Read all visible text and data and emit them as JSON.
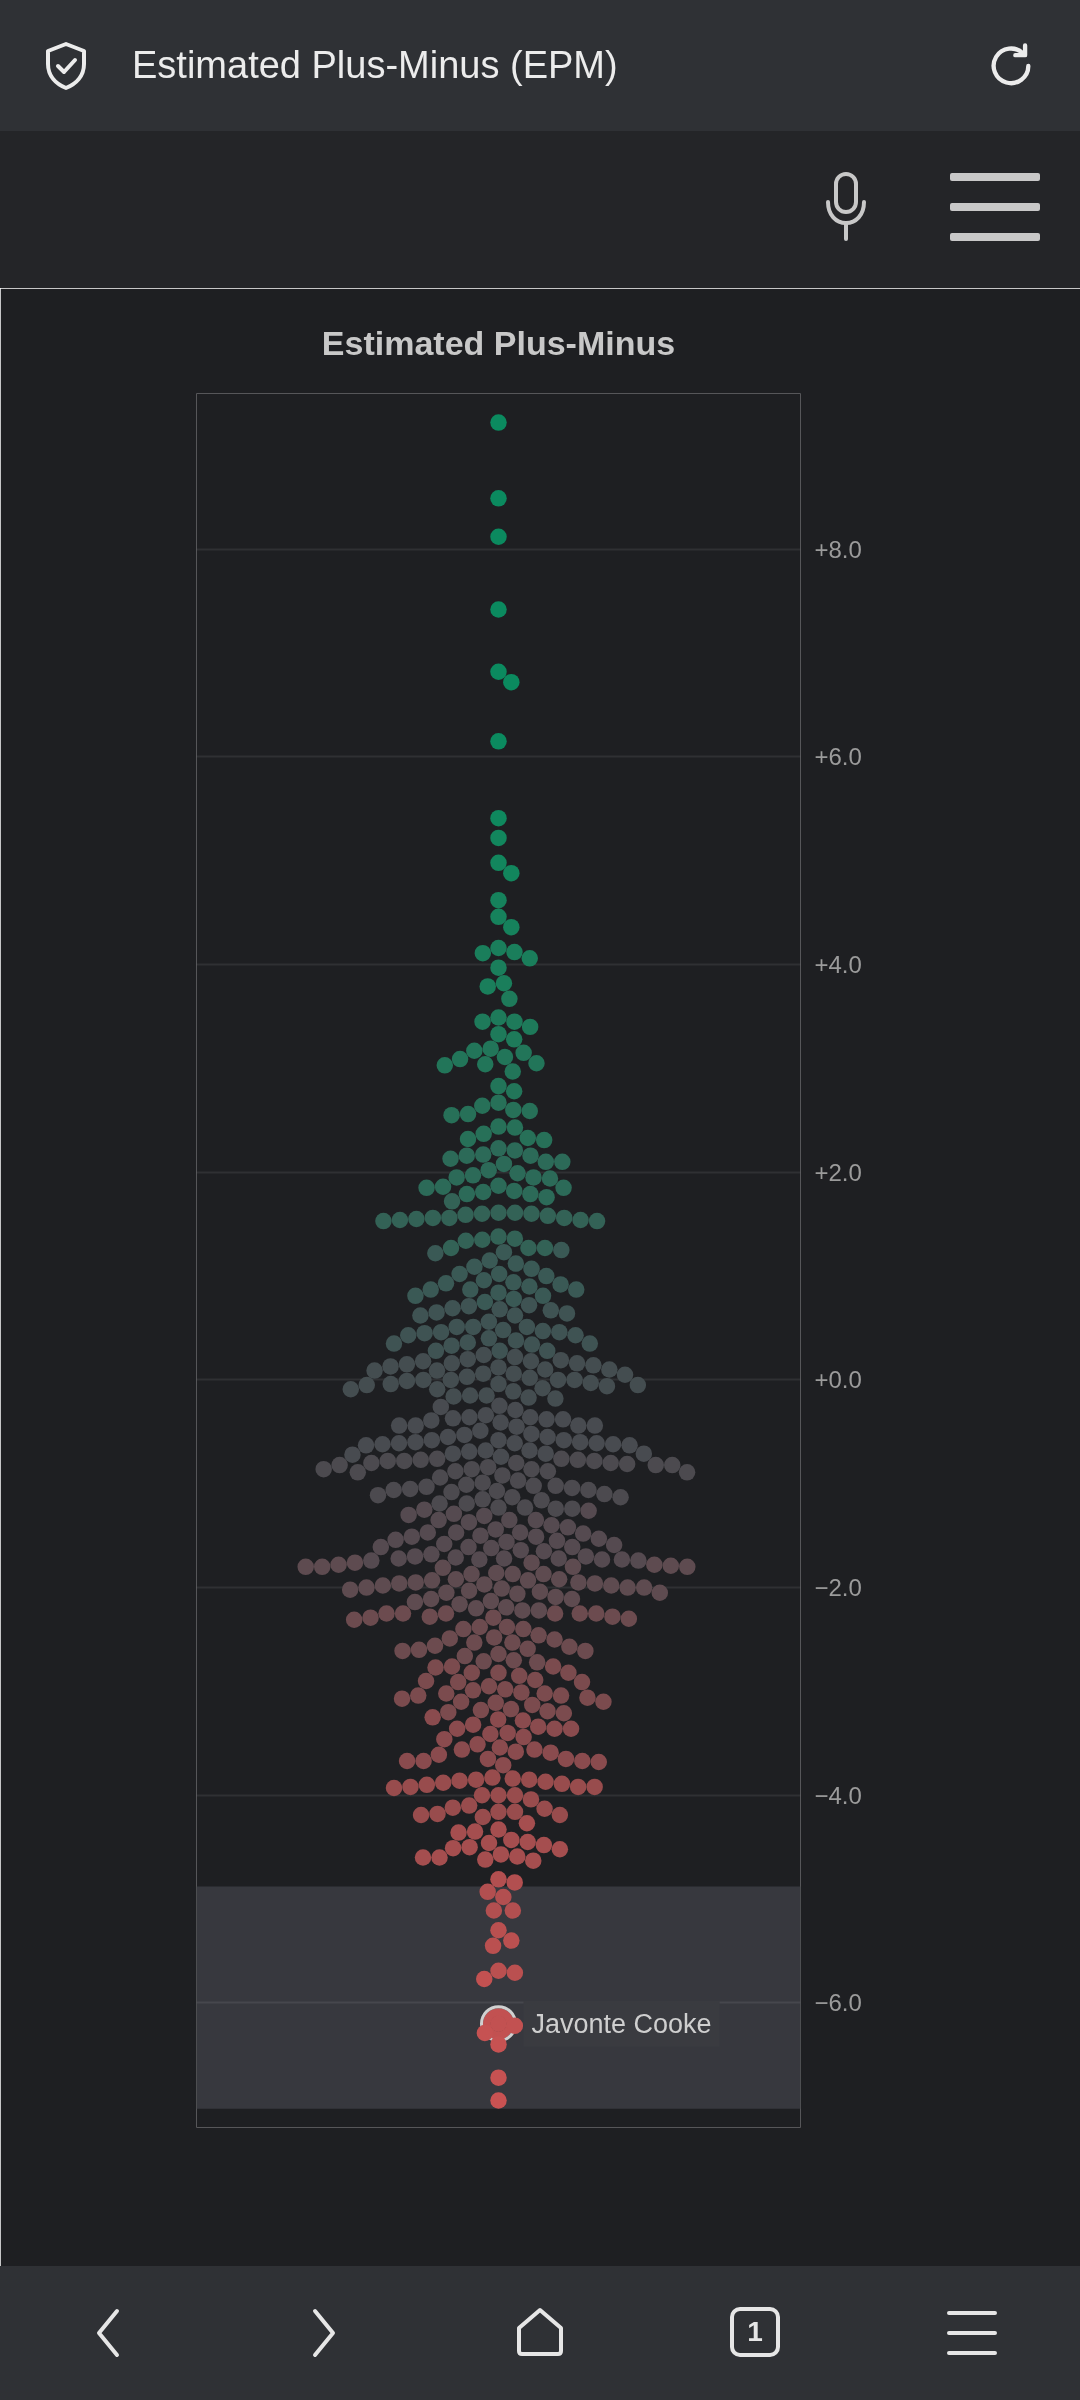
{
  "chart_data": {
    "type": "scatter",
    "title": "Estimated Plus-Minus",
    "marker": "circle",
    "grid": "y",
    "tick_labels": "y",
    "categories": [
      null
    ],
    "ylim": [
      -7.2,
      9.5
    ],
    "yticks": [
      {
        "value": 8,
        "label": "+8.0"
      },
      {
        "value": 6,
        "label": "+6.0"
      },
      {
        "value": 4,
        "label": "+4.0"
      },
      {
        "value": 2,
        "label": "+2.0"
      },
      {
        "value": 0,
        "label": "+0.0"
      },
      {
        "value": -2,
        "label": "−2.0"
      },
      {
        "value": -4,
        "label": "−4.0"
      },
      {
        "value": -6,
        "label": "−6.0"
      }
    ],
    "bands": [
      {
        "axis": "y",
        "from": -4.88,
        "to": -7.02,
        "color": "#37383e"
      }
    ],
    "annotations": [
      "Estimated Plus-Minus (EPM)",
      "1"
    ],
    "series": [
      {
        "color": "#0b8a5f",
        "x": [
          null,
          null,
          null,
          null,
          null,
          null,
          null
        ],
        "values": [
          9.22,
          8.49,
          8.12,
          7.42,
          6.82,
          6.72,
          6.15
        ]
      },
      {
        "color": "#0f885e",
        "x": [
          null
        ],
        "values": [
          5.41
        ]
      },
      {
        "color": "#12865d",
        "x": [
          null,
          null,
          null
        ],
        "values": [
          5.22,
          4.98,
          4.88
        ]
      },
      {
        "color": "#16825c",
        "x": [
          null,
          null,
          null
        ],
        "values": [
          4.62,
          4.46,
          4.36
        ]
      },
      {
        "color": "#1a7e5b",
        "x": [
          null,
          null,
          null,
          null,
          null,
          null,
          null
        ],
        "values": [
          4.16,
          4.12,
          4.11,
          4.06,
          3.97,
          3.82,
          3.79
        ]
      },
      {
        "color": "#1e7a5a",
        "x": [
          null,
          null,
          null,
          null,
          null,
          null,
          null
        ],
        "values": [
          3.67,
          3.49,
          3.45,
          3.45,
          3.4,
          3.33,
          3.28
        ]
      },
      {
        "color": "#227559",
        "x": [
          null,
          null,
          null,
          null,
          null,
          null,
          null,
          null,
          null,
          null,
          null
        ],
        "values": [
          3.19,
          3.17,
          3.15,
          3.11,
          3.09,
          3.05,
          3.04,
          3.03,
          2.97,
          2.83,
          2.78
        ]
      },
      {
        "color": "#277058",
        "x": [
          null,
          null,
          null,
          null,
          null,
          null,
          null,
          null,
          null,
          null,
          null,
          null
        ],
        "values": [
          2.67,
          2.64,
          2.6,
          2.59,
          2.56,
          2.55,
          2.44,
          2.43,
          2.37,
          2.33,
          2.32,
          2.31
        ]
      },
      {
        "color": "#2c6a58",
        "x": [
          null,
          null,
          null,
          null,
          null,
          null,
          null,
          null,
          null,
          null,
          null,
          null,
          null,
          null,
          null,
          null,
          null,
          null,
          null,
          null,
          null,
          null,
          null,
          null
        ],
        "values": [
          2.23,
          2.21,
          2.17,
          2.16,
          2.16,
          2.13,
          2.1,
          2.1,
          2.08,
          2.02,
          1.99,
          1.97,
          1.95,
          1.95,
          1.94,
          1.87,
          1.86,
          1.85,
          1.85,
          1.82,
          1.81,
          1.79,
          1.79,
          1.76
        ]
      },
      {
        "color": "#336256",
        "x": [
          null,
          null,
          null,
          null,
          null,
          null,
          null,
          null,
          null,
          null,
          null,
          null,
          null,
          null,
          null,
          null,
          null,
          null,
          null,
          null,
          null,
          null
        ],
        "values": [
          1.72,
          1.61,
          1.61,
          1.6,
          1.6,
          1.59,
          1.58,
          1.56,
          1.56,
          1.56,
          1.55,
          1.54,
          1.54,
          1.53,
          1.53,
          1.38,
          1.36,
          1.35,
          1.34,
          1.27,
          1.27,
          1.27
        ]
      },
      {
        "color": "#3a5955",
        "x": [
          null,
          null,
          null,
          null,
          null,
          null,
          null,
          null,
          null,
          null,
          null,
          null,
          null,
          null,
          null,
          null,
          null,
          null,
          null,
          null,
          null,
          null,
          null
        ],
        "values": [
          1.25,
          1.23,
          1.22,
          1.15,
          1.12,
          1.09,
          1.07,
          1.02,
          1.02,
          1.0,
          0.96,
          0.94,
          0.93,
          0.92,
          0.9,
          0.87,
          0.87,
          0.87,
          0.84,
          0.81,
          0.81,
          0.78,
          0.75
        ]
      },
      {
        "color": "#3f5353",
        "x": [
          null,
          null,
          null,
          null,
          null,
          null,
          null,
          null,
          null,
          null,
          null,
          null,
          null,
          null,
          null,
          null,
          null,
          null,
          null,
          null,
          null,
          null,
          null,
          null,
          null,
          null,
          null,
          null,
          null,
          null
        ],
        "values": [
          0.72,
          0.71,
          0.69,
          0.68,
          0.67,
          0.65,
          0.64,
          0.62,
          0.62,
          0.56,
          0.51,
          0.51,
          0.51,
          0.48,
          0.47,
          0.46,
          0.46,
          0.45,
          0.43,
          0.43,
          0.4,
          0.38,
          0.36,
          0.35,
          0.35,
          0.34,
          0.33,
          0.28,
          0.28,
          0.28
        ]
      },
      {
        "color": "#444d50",
        "x": [
          null,
          null,
          null,
          null,
          null,
          null,
          null,
          null,
          null,
          null,
          null,
          null,
          null,
          null,
          null,
          null,
          null,
          null,
          null,
          null,
          null,
          null,
          null,
          null,
          null,
          null,
          null,
          null,
          null,
          null,
          null,
          null,
          null,
          null,
          null,
          null,
          null,
          null,
          null,
          null,
          null
        ],
        "values": [
          0.24,
          0.22,
          0.2,
          0.19,
          0.18,
          0.18,
          0.16,
          0.16,
          0.15,
          0.14,
          0.13,
          0.12,
          0.1,
          0.1,
          0.09,
          0.09,
          0.06,
          0.06,
          0.05,
          0.03,
          0.02,
          0.0,
          0.0,
          0.0,
          0.0,
          -0.01,
          -0.03,
          -0.04,
          -0.04,
          -0.05,
          -0.05,
          -0.06,
          -0.08,
          -0.09,
          -0.09,
          -0.11,
          -0.15,
          -0.15,
          -0.16,
          -0.17,
          -0.18
        ]
      },
      {
        "color": "#484b50",
        "x": [
          null,
          null,
          null,
          null,
          null,
          null,
          null,
          null,
          null,
          null,
          null,
          null,
          null,
          null,
          null,
          null,
          null,
          null,
          null,
          null,
          null,
          null,
          null,
          null,
          null,
          null,
          null,
          null,
          null,
          null,
          null,
          null,
          null,
          null,
          null,
          null,
          null,
          null,
          null,
          null,
          null
        ],
        "values": [
          -0.25,
          -0.26,
          -0.29,
          -0.34,
          -0.36,
          -0.36,
          -0.37,
          -0.38,
          -0.38,
          -0.39,
          -0.41,
          -0.44,
          -0.44,
          -0.44,
          -0.44,
          -0.45,
          -0.49,
          -0.52,
          -0.53,
          -0.55,
          -0.55,
          -0.58,
          -0.58,
          -0.58,
          -0.6,
          -0.6,
          -0.61,
          -0.61,
          -0.61,
          -0.62,
          -0.62,
          -0.63,
          -0.63,
          -0.68,
          -0.68,
          -0.69,
          -0.71,
          -0.71,
          -0.71,
          -0.72,
          -0.74
        ]
      },
      {
        "color": "#4c4a4f",
        "x": [
          null,
          null,
          null,
          null,
          null,
          null,
          null,
          null,
          null,
          null,
          null,
          null,
          null,
          null,
          null,
          null,
          null,
          null,
          null,
          null,
          null,
          null,
          null,
          null,
          null,
          null,
          null,
          null,
          null,
          null,
          null,
          null,
          null,
          null,
          null,
          null,
          null,
          null,
          null,
          null,
          null,
          null,
          null,
          null,
          null,
          null,
          null,
          null
        ],
        "values": [
          -0.76,
          -0.76,
          -0.77,
          -0.77,
          -0.78,
          -0.78,
          -0.78,
          -0.8,
          -0.8,
          -0.8,
          -0.81,
          -0.82,
          -0.82,
          -0.82,
          -0.84,
          -0.86,
          -0.86,
          -0.86,
          -0.88,
          -0.88,
          -0.89,
          -0.89,
          -0.92,
          -0.94,
          -0.97,
          -0.99,
          -1.01,
          -1.02,
          -1.02,
          -1.03,
          -1.04,
          -1.05,
          -1.06,
          -1.06,
          -1.07,
          -1.08,
          -1.1,
          -1.11,
          -1.13,
          -1.13,
          -1.15,
          -1.16,
          -1.19,
          -1.19,
          -1.23,
          -1.23,
          -1.24,
          -1.24
        ]
      },
      {
        "color": "#554a50",
        "x": [
          null,
          null,
          null,
          null,
          null,
          null,
          null,
          null,
          null,
          null,
          null,
          null,
          null,
          null,
          null,
          null,
          null,
          null,
          null,
          null,
          null,
          null,
          null,
          null,
          null,
          null,
          null,
          null,
          null,
          null,
          null,
          null,
          null,
          null,
          null,
          null,
          null,
          null,
          null,
          null,
          null,
          null,
          null
        ],
        "values": [
          -1.25,
          -1.26,
          -1.29,
          -1.3,
          -1.31,
          -1.35,
          -1.35,
          -1.35,
          -1.37,
          -1.4,
          -1.42,
          -1.44,
          -1.47,
          -1.47,
          -1.47,
          -1.48,
          -1.5,
          -1.51,
          -1.51,
          -1.53,
          -1.54,
          -1.55,
          -1.56,
          -1.58,
          -1.59,
          -1.61,
          -1.61,
          -1.61,
          -1.62,
          -1.64,
          -1.65,
          -1.68,
          -1.7,
          -1.7,
          -1.71,
          -1.72,
          -1.72,
          -1.72,
          -1.73,
          -1.73,
          -1.73,
          -1.74,
          -1.74
        ]
      },
      {
        "color": "#5e4b50",
        "x": [
          null,
          null,
          null,
          null,
          null,
          null,
          null,
          null,
          null,
          null,
          null,
          null,
          null,
          null,
          null,
          null,
          null,
          null,
          null,
          null,
          null,
          null,
          null,
          null,
          null,
          null,
          null,
          null,
          null,
          null,
          null,
          null,
          null,
          null,
          null,
          null,
          null,
          null,
          null,
          null,
          null,
          null,
          null,
          null,
          null
        ],
        "values": [
          -1.76,
          -1.76,
          -1.78,
          -1.78,
          -1.79,
          -1.8,
          -1.8,
          -1.8,
          -1.8,
          -1.81,
          -1.86,
          -1.87,
          -1.87,
          -1.87,
          -1.92,
          -1.92,
          -1.93,
          -1.93,
          -1.95,
          -1.95,
          -1.96,
          -1.96,
          -1.97,
          -1.98,
          -1.98,
          -2.0,
          -2.0,
          -2.0,
          -2.01,
          -2.02,
          -2.03,
          -2.04,
          -2.05,
          -2.05,
          -2.06,
          -2.09,
          -2.11,
          -2.11,
          -2.13,
          -2.14,
          -2.16,
          -2.19,
          -2.2,
          -2.22,
          -2.22
        ]
      },
      {
        "color": "#6c4b4f",
        "x": [
          null,
          null,
          null,
          null,
          null,
          null,
          null,
          null,
          null,
          null,
          null,
          null,
          null,
          null,
          null,
          null,
          null,
          null,
          null,
          null,
          null,
          null,
          null,
          null,
          null,
          null,
          null,
          null,
          null,
          null,
          null,
          null,
          null
        ],
        "values": [
          -2.25,
          -2.25,
          -2.25,
          -2.25,
          -2.25,
          -2.25,
          -2.28,
          -2.28,
          -2.29,
          -2.29,
          -2.3,
          -2.31,
          -2.38,
          -2.38,
          -2.4,
          -2.4,
          -2.46,
          -2.48,
          -2.49,
          -2.5,
          -2.53,
          -2.53,
          -2.56,
          -2.57,
          -2.59,
          -2.6,
          -2.61,
          -2.61,
          -2.64,
          -2.66,
          -2.7,
          -2.71,
          -2.72
        ]
      },
      {
        "color": "#7b4b4e",
        "x": [
          null,
          null,
          null,
          null,
          null,
          null,
          null,
          null,
          null,
          null,
          null,
          null,
          null,
          null,
          null,
          null,
          null,
          null,
          null,
          null,
          null,
          null,
          null,
          null,
          null,
          null,
          null,
          null,
          null,
          null
        ],
        "values": [
          -2.76,
          -2.76,
          -2.77,
          -2.82,
          -2.82,
          -2.82,
          -2.85,
          -2.89,
          -2.9,
          -2.91,
          -2.91,
          -2.95,
          -2.98,
          -2.99,
          -3.01,
          -3.02,
          -3.02,
          -3.04,
          -3.04,
          -3.06,
          -3.07,
          -3.1,
          -3.1,
          -3.11,
          -3.13,
          -3.17,
          -3.18,
          -3.19,
          -3.2,
          -3.21
        ]
      },
      {
        "color": "#8a4b4e",
        "x": [
          null,
          null,
          null,
          null,
          null,
          null,
          null,
          null,
          null,
          null,
          null,
          null,
          null,
          null,
          null,
          null,
          null,
          null,
          null,
          null,
          null,
          null,
          null,
          null,
          null,
          null
        ],
        "values": [
          -3.25,
          -3.27,
          -3.28,
          -3.32,
          -3.34,
          -3.36,
          -3.36,
          -3.36,
          -3.4,
          -3.41,
          -3.44,
          -3.46,
          -3.51,
          -3.54,
          -3.56,
          -3.56,
          -3.58,
          -3.59,
          -3.61,
          -3.65,
          -3.65,
          -3.67,
          -3.67,
          -3.67,
          -3.68,
          -3.71
        ]
      },
      {
        "color": "#984c4d",
        "x": [
          null,
          null,
          null,
          null,
          null,
          null,
          null,
          null,
          null,
          null,
          null,
          null,
          null,
          null,
          null,
          null,
          null,
          null,
          null,
          null,
          null,
          null,
          null,
          null,
          null,
          null
        ],
        "values": [
          -3.83,
          -3.84,
          -3.85,
          -3.85,
          -3.86,
          -3.87,
          -3.88,
          -3.89,
          -3.9,
          -3.92,
          -3.92,
          -3.92,
          -3.93,
          -4.0,
          -4.0,
          -4.0,
          -4.04,
          -4.1,
          -4.12,
          -4.13,
          -4.16,
          -4.16,
          -4.18,
          -4.19,
          -4.19,
          -4.21
        ]
      },
      {
        "color": "#a54e4f",
        "x": [
          null,
          null,
          null,
          null,
          null,
          null,
          null,
          null,
          null,
          null,
          null,
          null,
          null,
          null,
          null,
          null,
          null
        ],
        "values": [
          -4.27,
          -4.33,
          -4.35,
          -4.36,
          -4.43,
          -4.45,
          -4.46,
          -4.48,
          -4.5,
          -4.51,
          -4.52,
          -4.57,
          -4.59,
          -4.6,
          -4.6,
          -4.62,
          -4.63
        ]
      },
      {
        "color": "#b24f50",
        "x": [
          null,
          null,
          null,
          null,
          null,
          null
        ],
        "values": [
          -4.81,
          -4.84,
          -4.93,
          -4.98,
          -5.11,
          -5.11
        ]
      },
      {
        "color": "#ba5050",
        "x": [
          null,
          null,
          null,
          null,
          null
        ],
        "values": [
          -5.3,
          -5.4,
          -5.45,
          -5.69,
          -5.71
        ]
      },
      {
        "name": "Javonte Cooke",
        "color": "#c25151",
        "x": [
          null
        ],
        "values": [
          -6.2
        ]
      },
      {
        "color": "#c25151",
        "x": [
          null,
          null
        ],
        "values": [
          -5.77,
          -6.22
        ]
      },
      {
        "color": "#c65252",
        "x": [
          null,
          null,
          null
        ],
        "values": [
          -6.29,
          -6.4,
          -6.72
        ]
      },
      {
        "color": "#c95252",
        "x": [
          null
        ],
        "values": [
          -6.94
        ]
      }
    ]
  }
}
